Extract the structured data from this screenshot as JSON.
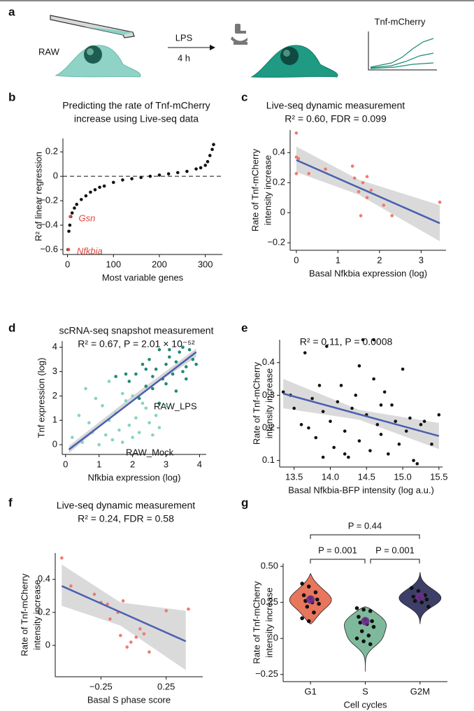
{
  "panel_a": {
    "label": "a",
    "cell_line": "RAW",
    "stimulus": "LPS",
    "duration": "4 h",
    "reporter": "Tnf-mCherry"
  },
  "chart_data": [
    {
      "type": "scatter",
      "panel_label": "b",
      "title": [
        "Predicting the rate of Tnf-mCherry",
        "increase using Live-seq data"
      ],
      "x_label": "Most variable genes",
      "y_label": [
        "R² of linear regression"
      ],
      "xlim": [
        -10,
        337
      ],
      "xticks": [
        0,
        100,
        200,
        300
      ],
      "ylim": [
        -0.64,
        0.31
      ],
      "yticks": [
        0.2,
        0,
        {
          "value": -0.2,
          "label": "−0.2"
        },
        {
          "value": -0.4,
          "label": "−0.4"
        },
        {
          "value": -0.6,
          "label": "−0.6"
        }
      ],
      "reference_line": 0,
      "series": [
        {
          "color": "#111111",
          "x": [
            1,
            3,
            5,
            7,
            10,
            15,
            20,
            30,
            40,
            50,
            60,
            70,
            80,
            100,
            120,
            140,
            160,
            180,
            200,
            220,
            240,
            260,
            280,
            290,
            300,
            305,
            310,
            315,
            318
          ],
          "values": [
            -0.6,
            -0.45,
            -0.4,
            -0.33,
            -0.3,
            -0.26,
            -0.23,
            -0.19,
            -0.16,
            -0.13,
            -0.11,
            -0.09,
            -0.08,
            -0.05,
            -0.03,
            -0.02,
            -0.01,
            0.0,
            0.01,
            0.02,
            0.03,
            0.04,
            0.06,
            0.07,
            0.09,
            0.12,
            0.17,
            0.22,
            0.26
          ]
        },
        {
          "color": "#e0453d",
          "x": [
            2,
            6
          ],
          "values": [
            -0.6,
            -0.33
          ],
          "point_labels": [
            "Nfkbia",
            "Gsn"
          ]
        }
      ]
    },
    {
      "type": "scatter",
      "panel_label": "c",
      "title": [
        "Live-seq dynamic measurement"
      ],
      "subtitle": "R² = 0.60,  FDR = 0.099",
      "x_label": "Basal Nfkbia expression (log)",
      "y_label": [
        "Rate of Tnf-mCherry",
        "intensity increase"
      ],
      "xlim": [
        -0.15,
        3.6
      ],
      "xticks": [
        0,
        1,
        2,
        3
      ],
      "ylim": [
        -0.25,
        0.55
      ],
      "yticks": [
        {
          "value": -0.2,
          "label": "−0.2"
        },
        0,
        0.2,
        0.4
      ],
      "band": {
        "color": "#d4d4d4",
        "x": [
          0,
          1.5,
          3.45
        ],
        "lower": [
          0.27,
          0.12,
          -0.19
        ],
        "upper": [
          0.44,
          0.22,
          0.05
        ]
      },
      "fit": {
        "color": "#4a5fb0",
        "x": [
          0,
          3.45
        ],
        "values": [
          0.35,
          -0.07
        ]
      },
      "series": [
        {
          "color": "#ef7a6e",
          "x": [
            0,
            0,
            0.05,
            0,
            0.3,
            0.7,
            1.35,
            1.4,
            1.5,
            1.6,
            1.7,
            1.8,
            1.7,
            2.1,
            1.55,
            2.3,
            3.45
          ],
          "values": [
            0.53,
            0.37,
            0.36,
            0.26,
            0.26,
            0.29,
            0.31,
            0.23,
            0.14,
            0.2,
            0.24,
            0.15,
            0.1,
            0.05,
            -0.02,
            -0.02,
            0.07
          ]
        }
      ]
    },
    {
      "type": "scatter",
      "panel_label": "d",
      "title": [
        "scRNA-seq snapshot measurement"
      ],
      "subtitle": "R² = 0.67, P = 2.01 × 10⁻⁵²",
      "x_label": "Nfkbia expression (log)",
      "y_label": [
        "Tnf expression (log)"
      ],
      "xlim": [
        -0.1,
        4.2
      ],
      "xticks": [
        0,
        1,
        2,
        3,
        4
      ],
      "ylim": [
        -0.4,
        4.25
      ],
      "yticks": [
        0,
        1,
        2,
        3,
        4
      ],
      "series": [
        {
          "name": "RAW_LPS",
          "color": "#1e8a74",
          "x": [
            1.9,
            2.1,
            2.3,
            2.4,
            2.5,
            2.6,
            2.7,
            2.8,
            2.9,
            3.0,
            3.1,
            3.2,
            3.3,
            3.4,
            3.5,
            3.6,
            3.7,
            3.8,
            2.2,
            2.6,
            3.0,
            3.3,
            3.6,
            2.8,
            3.1,
            3.5,
            1.5,
            1.8,
            2.4,
            3.9
          ],
          "values": [
            2.6,
            2.9,
            3.3,
            2.4,
            3.5,
            2.8,
            3.1,
            3.9,
            2.7,
            3.3,
            3.6,
            2.9,
            3.4,
            3.8,
            3.0,
            3.2,
            3.9,
            3.5,
            1.9,
            2.3,
            2.5,
            2.2,
            2.7,
            1.7,
            3.9,
            4.0,
            2.8,
            2.9,
            3.1,
            3.3
          ]
        },
        {
          "name": "RAW_Mock",
          "color": "#86d3c1",
          "x": [
            0.2,
            0.4,
            0.5,
            0.7,
            0.8,
            1.0,
            1.1,
            1.2,
            1.3,
            1.4,
            1.5,
            1.6,
            1.7,
            1.8,
            1.9,
            2.0,
            2.1,
            2.2,
            2.4,
            2.5,
            2.6,
            2.7,
            2.8,
            3.0,
            0.6,
            0.9,
            1.3,
            1.7,
            2.0,
            2.3
          ],
          "values": [
            0.3,
            1.2,
            0.1,
            0.9,
            0.5,
            0.0,
            1.6,
            0.4,
            1.0,
            0.2,
            1.3,
            0.6,
            0.1,
            1.8,
            0.8,
            0.3,
            1.1,
            0.5,
            1.5,
            0.9,
            0.4,
            1.2,
            0.7,
            1.6,
            2.3,
            1.9,
            2.6,
            2.1,
            2.0,
            1.7
          ]
        }
      ],
      "band": {
        "color": "#cfcfcf",
        "x": [
          0.1,
          2,
          3.9
        ],
        "lower": [
          -0.35,
          1.85,
          3.6
        ],
        "upper": [
          -0.05,
          2.0,
          3.95
        ]
      },
      "fit": {
        "color": "#4a5fb0",
        "x": [
          0.1,
          3.9
        ],
        "values": [
          -0.2,
          3.8
        ]
      }
    },
    {
      "type": "scatter",
      "panel_label": "e",
      "title": [],
      "subtitle": "R² = 0.11, P = 0.0008",
      "x_label": "Basal Nfkbia-BFP intensity (log a.u.)",
      "y_label": [
        "Rate of Tnf-mCherry",
        "intensity increase"
      ],
      "xlim": [
        13.3,
        15.55
      ],
      "xticks": [
        13.5,
        {
          "value": 14,
          "label": "14.0"
        },
        14.5,
        {
          "value": 15,
          "label": "15.0"
        },
        15.5
      ],
      "ylim": [
        0.08,
        0.47
      ],
      "yticks": [
        0.1,
        0.2,
        0.3,
        0.4
      ],
      "band": {
        "color": "#d4d4d4",
        "x": [
          13.35,
          14.4,
          15.5
        ],
        "lower": [
          0.26,
          0.225,
          0.135
        ],
        "upper": [
          0.35,
          0.255,
          0.215
        ]
      },
      "fit": {
        "color": "#4a5fb0",
        "x": [
          13.35,
          15.5
        ],
        "values": [
          0.305,
          0.175
        ]
      },
      "series": [
        {
          "color": "#111111",
          "x": [
            13.35,
            13.45,
            13.5,
            13.6,
            13.65,
            13.7,
            13.75,
            13.8,
            13.85,
            13.9,
            13.95,
            14.0,
            14.05,
            14.1,
            14.15,
            14.2,
            14.25,
            14.3,
            14.35,
            14.4,
            14.45,
            14.5,
            14.55,
            14.6,
            14.65,
            14.7,
            14.75,
            14.8,
            14.85,
            14.9,
            14.95,
            15.0,
            15.05,
            15.1,
            15.15,
            15.2,
            15.25,
            15.3,
            15.4,
            15.5,
            14.6,
            14.4,
            14.2,
            13.9,
            14.7
          ],
          "values": [
            0.31,
            0.3,
            0.26,
            0.21,
            0.43,
            0.2,
            0.29,
            0.17,
            0.33,
            0.25,
            0.45,
            0.22,
            0.14,
            0.28,
            0.33,
            0.19,
            0.11,
            0.26,
            0.3,
            0.16,
            0.47,
            0.24,
            0.13,
            0.47,
            0.21,
            0.18,
            0.31,
            0.12,
            0.27,
            0.22,
            0.15,
            0.38,
            0.19,
            0.23,
            0.1,
            0.09,
            0.21,
            0.22,
            0.15,
            0.24,
            0.35,
            0.39,
            0.12,
            0.11,
            0.27
          ]
        }
      ]
    },
    {
      "type": "scatter",
      "panel_label": "f",
      "title": [
        "Live-seq dynamic measurement"
      ],
      "subtitle": "R² = 0.24, FDR = 0.58",
      "x_label": "Basal S phase score",
      "y_label": [
        "Rate of Tnf-mCherry",
        "intensity increase"
      ],
      "xlim": [
        -0.6,
        0.53
      ],
      "xticks": [
        {
          "value": -0.25,
          "label": "−0.25"
        },
        0.25
      ],
      "ylim": [
        -0.19,
        0.56
      ],
      "yticks": [
        0,
        0.2,
        0.4
      ],
      "band": {
        "color": "#d4d4d4",
        "x": [
          -0.55,
          -0.1,
          0.4
        ],
        "lower": [
          0.24,
          0.12,
          -0.15
        ],
        "upper": [
          0.49,
          0.26,
          0.21
        ]
      },
      "fit": {
        "color": "#4a5fb0",
        "x": [
          -0.55,
          0.4
        ],
        "values": [
          0.36,
          0.025
        ]
      },
      "series": [
        {
          "color": "#ef7a6e",
          "x": [
            -0.55,
            -0.48,
            -0.3,
            -0.25,
            -0.2,
            -0.18,
            -0.12,
            -0.1,
            -0.08,
            -0.05,
            -0.02,
            0.02,
            0.05,
            0.08,
            0.12,
            0.25,
            0.42
          ],
          "values": [
            0.53,
            0.36,
            0.31,
            0.26,
            0.25,
            0.16,
            0.2,
            0.06,
            0.27,
            -0.01,
            0.02,
            0.05,
            0.1,
            0.07,
            -0.04,
            0.21,
            0.22
          ]
        }
      ]
    },
    {
      "type": "violin",
      "panel_label": "g",
      "x_label": "Cell cycles",
      "y_label": [
        "Rate of Tnf-mCherry",
        "intensity increase"
      ],
      "categories": [
        "G1",
        "S",
        "G2M"
      ],
      "colors": [
        "#e8765c",
        "#7fb99b",
        "#3e3f68"
      ],
      "center_color": "#6b2d8c",
      "ylim": [
        -0.3,
        0.52
      ],
      "yticks": [
        {
          "value": 0.5,
          "label": "0.50"
        },
        0.25,
        0,
        {
          "value": -0.25,
          "label": "−0.25"
        }
      ],
      "ranges": [
        [
          0.1,
          0.45
        ],
        [
          -0.23,
          0.22
        ],
        [
          0.1,
          0.46
        ]
      ],
      "points": [
        [
          0.38,
          0.36,
          0.32,
          0.3,
          0.28,
          0.27,
          0.26,
          0.25,
          0.24,
          0.22,
          0.18,
          0.14,
          0.12
        ],
        [
          0.21,
          0.2,
          0.19,
          0.15,
          0.13,
          0.12,
          0.11,
          0.1,
          0.08,
          0.05,
          0.02,
          0.0,
          -0.02,
          -0.04
        ],
        [
          0.35,
          0.33,
          0.3,
          0.29,
          0.28,
          0.27,
          0.26,
          0.25,
          0.22
        ]
      ],
      "centers": [
        0.27,
        0.12,
        0.29
      ],
      "comparisons": [
        "P = 0.001",
        "P = 0.001",
        "P = 0.44"
      ]
    }
  ]
}
